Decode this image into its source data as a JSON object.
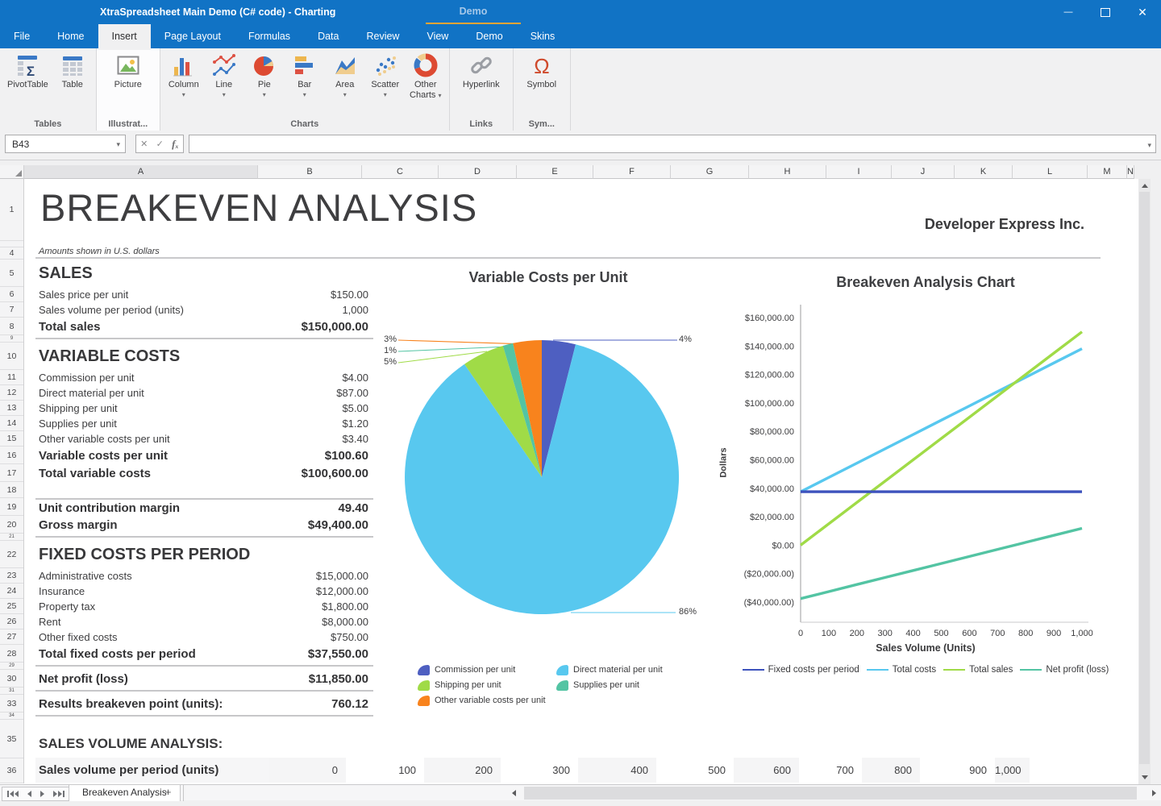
{
  "window": {
    "title": "XtraSpreadsheet Main Demo (C# code) - Charting",
    "demo_tab": "Demo"
  },
  "ribbon": {
    "tabs": [
      {
        "label": "File",
        "cls": ""
      },
      {
        "label": "Home",
        "cls": ""
      },
      {
        "label": "Insert",
        "cls": "active"
      },
      {
        "label": "Page Layout",
        "cls": ""
      },
      {
        "label": "Formulas",
        "cls": ""
      },
      {
        "label": "Data",
        "cls": ""
      },
      {
        "label": "Review",
        "cls": ""
      },
      {
        "label": "View",
        "cls": ""
      },
      {
        "label": "Demo",
        "cls": ""
      },
      {
        "label": "Skins",
        "cls": ""
      }
    ],
    "groups": {
      "tables": {
        "label": "Tables",
        "pivottable": "PivotTable",
        "table": "Table"
      },
      "illustrations": {
        "label": "Illustrat...",
        "picture": "Picture"
      },
      "charts": {
        "label": "Charts",
        "column": "Column",
        "line": "Line",
        "pie": "Pie",
        "bar": "Bar",
        "area": "Area",
        "scatter": "Scatter",
        "other1": "Other",
        "other2": "Charts"
      },
      "links": {
        "label": "Links",
        "hyperlink": "Hyperlink"
      },
      "symbols": {
        "label": "Sym...",
        "symbol": "Symbol"
      }
    }
  },
  "formula_bar": {
    "name_box": "B43",
    "input_value": ""
  },
  "grid": {
    "columns": [
      "A",
      "B",
      "C",
      "D",
      "E",
      "F",
      "G",
      "H",
      "I",
      "J",
      "K",
      "L",
      "M",
      "N"
    ],
    "active_column": "B",
    "top_row_numbers": {
      "r1": "1",
      "r23": "",
      "r4": "4"
    }
  },
  "sheet": {
    "title": "BREAKEVEN ANALYSIS",
    "company": "Developer Express Inc.",
    "subtitle": "Amounts shown in U.S. dollars",
    "rows": [
      {
        "n": "5",
        "label": "SALES",
        "value": "",
        "kind": "r-section"
      },
      {
        "n": "6",
        "label": "Sales price per unit",
        "value": "$150.00",
        "kind": "r-item"
      },
      {
        "n": "7",
        "label": "Sales volume per period (units)",
        "value": "1,000",
        "kind": "r-item"
      },
      {
        "n": "8",
        "label": "Total sales",
        "value": "$150,000.00",
        "kind": "r-total"
      },
      {
        "n": "9",
        "label": "",
        "value": "",
        "kind": "r-thin r-rule"
      },
      {
        "n": "10",
        "label": "VARIABLE COSTS",
        "value": "",
        "kind": "r-section"
      },
      {
        "n": "11",
        "label": "Commission per unit",
        "value": "$4.00",
        "kind": "r-item"
      },
      {
        "n": "12",
        "label": "Direct material per unit",
        "value": "$87.00",
        "kind": "r-item"
      },
      {
        "n": "13",
        "label": "Shipping per unit",
        "value": "$5.00",
        "kind": "r-item"
      },
      {
        "n": "14",
        "label": "Supplies per unit",
        "value": "$1.20",
        "kind": "r-item"
      },
      {
        "n": "15",
        "label": "Other variable costs per unit",
        "value": "$3.40",
        "kind": "r-item"
      },
      {
        "n": "16",
        "label": "Variable costs per unit",
        "value": "$100.60",
        "kind": "r-total"
      },
      {
        "n": "17",
        "label": "Total variable costs",
        "value": "$100,600.00",
        "kind": "r-total"
      },
      {
        "n": "18",
        "label": "",
        "value": "",
        "kind": "r-empty"
      },
      {
        "n": "19",
        "label": "Unit contribution margin",
        "value": "49.40",
        "kind": "r-total r-rule-top"
      },
      {
        "n": "20",
        "label": "Gross margin",
        "value": "$49,400.00",
        "kind": "r-total"
      },
      {
        "n": "21",
        "label": "",
        "value": "",
        "kind": "r-thin r-rule"
      },
      {
        "n": "22",
        "label": "FIXED COSTS PER PERIOD",
        "value": "",
        "kind": "r-section"
      },
      {
        "n": "23",
        "label": "Administrative costs",
        "value": "$15,000.00",
        "kind": "r-item"
      },
      {
        "n": "24",
        "label": "Insurance",
        "value": "$12,000.00",
        "kind": "r-item"
      },
      {
        "n": "25",
        "label": "Property tax",
        "value": "$1,800.00",
        "kind": "r-item"
      },
      {
        "n": "26",
        "label": "Rent",
        "value": "$8,000.00",
        "kind": "r-item"
      },
      {
        "n": "27",
        "label": "Other fixed costs",
        "value": "$750.00",
        "kind": "r-item"
      },
      {
        "n": "28",
        "label": "Total fixed costs per period",
        "value": "$37,550.00",
        "kind": "r-total"
      },
      {
        "n": "29",
        "label": "",
        "value": "",
        "kind": "r-thin r-rule"
      },
      {
        "n": "30",
        "label": "Net profit (loss)",
        "value": "$11,850.00",
        "kind": "r-total"
      },
      {
        "n": "31",
        "label": "",
        "value": "",
        "kind": "r-thin r-rule"
      },
      {
        "n": "33",
        "label": "Results breakeven point (units):",
        "value": "760.12",
        "kind": "r-total"
      },
      {
        "n": "34",
        "label": "",
        "value": "",
        "kind": "r-thin r-rule"
      },
      {
        "n": "35",
        "label": "SALES VOLUME ANALYSIS:",
        "value": "",
        "kind": "r-section2"
      },
      {
        "n": "36",
        "label": "",
        "value": "",
        "kind": "r-vol"
      }
    ],
    "volume_row": {
      "label": "Sales volume per period (units)",
      "values": [
        "0",
        "100",
        "200",
        "300",
        "400",
        "500",
        "600",
        "700",
        "800",
        "900",
        "1,000"
      ]
    }
  },
  "chart_data": [
    {
      "type": "pie",
      "title": "Variable Costs per Unit",
      "legend_position": "bottom",
      "slices": [
        {
          "label": "Commission per unit",
          "value": 4.0,
          "pct": "4%",
          "color": "#4e5fc1"
        },
        {
          "label": "Direct material per unit",
          "value": 87.0,
          "pct": "86%",
          "color": "#58c8ef"
        },
        {
          "label": "Shipping per unit",
          "value": 5.0,
          "pct": "5%",
          "color": "#a0db47"
        },
        {
          "label": "Supplies per unit",
          "value": 1.2,
          "pct": "1%",
          "color": "#53c4a3"
        },
        {
          "label": "Other variable costs per unit",
          "value": 3.4,
          "pct": "3%",
          "color": "#f8831d"
        }
      ]
    },
    {
      "type": "line",
      "title": "Breakeven Analysis Chart",
      "xlabel": "Sales Volume (Units)",
      "ylabel": "Dollars",
      "ylim": [
        -40000,
        160000
      ],
      "grid": false,
      "legend_position": "bottom",
      "x": [
        0,
        100,
        200,
        300,
        400,
        500,
        600,
        700,
        800,
        900,
        1000
      ],
      "xlabels": [
        "0",
        "100",
        "200",
        "300",
        "400",
        "500",
        "600",
        "700",
        "800",
        "900",
        "1,000"
      ],
      "yticks": [
        "$160,000.00",
        "$140,000.00",
        "$120,000.00",
        "$100,000.00",
        "$80,000.00",
        "$60,000.00",
        "$40,000.00",
        "$20,000.00",
        "$0.00",
        "($20,000.00)",
        "($40,000.00)"
      ],
      "series": [
        {
          "name": "Fixed costs per period",
          "color": "#3d52bd",
          "values": [
            37550,
            37550,
            37550,
            37550,
            37550,
            37550,
            37550,
            37550,
            37550,
            37550,
            37550
          ]
        },
        {
          "name": "Total costs",
          "color": "#58c8ef",
          "values": [
            37550,
            47610,
            57670,
            67730,
            77790,
            87850,
            97910,
            107970,
            118030,
            128090,
            138150
          ]
        },
        {
          "name": "Total sales",
          "color": "#a0db47",
          "values": [
            0,
            15000,
            30000,
            45000,
            60000,
            75000,
            90000,
            105000,
            120000,
            135000,
            150000
          ]
        },
        {
          "name": "Net profit (loss)",
          "color": "#53c4a3",
          "values": [
            -37550,
            -32610,
            -27670,
            -22730,
            -17790,
            -12850,
            -7910,
            -2970,
            1970,
            6910,
            11850
          ]
        }
      ]
    }
  ],
  "tabs_bar": {
    "sheet_tab": "Breakeven Analysis",
    "add_label": "+"
  }
}
